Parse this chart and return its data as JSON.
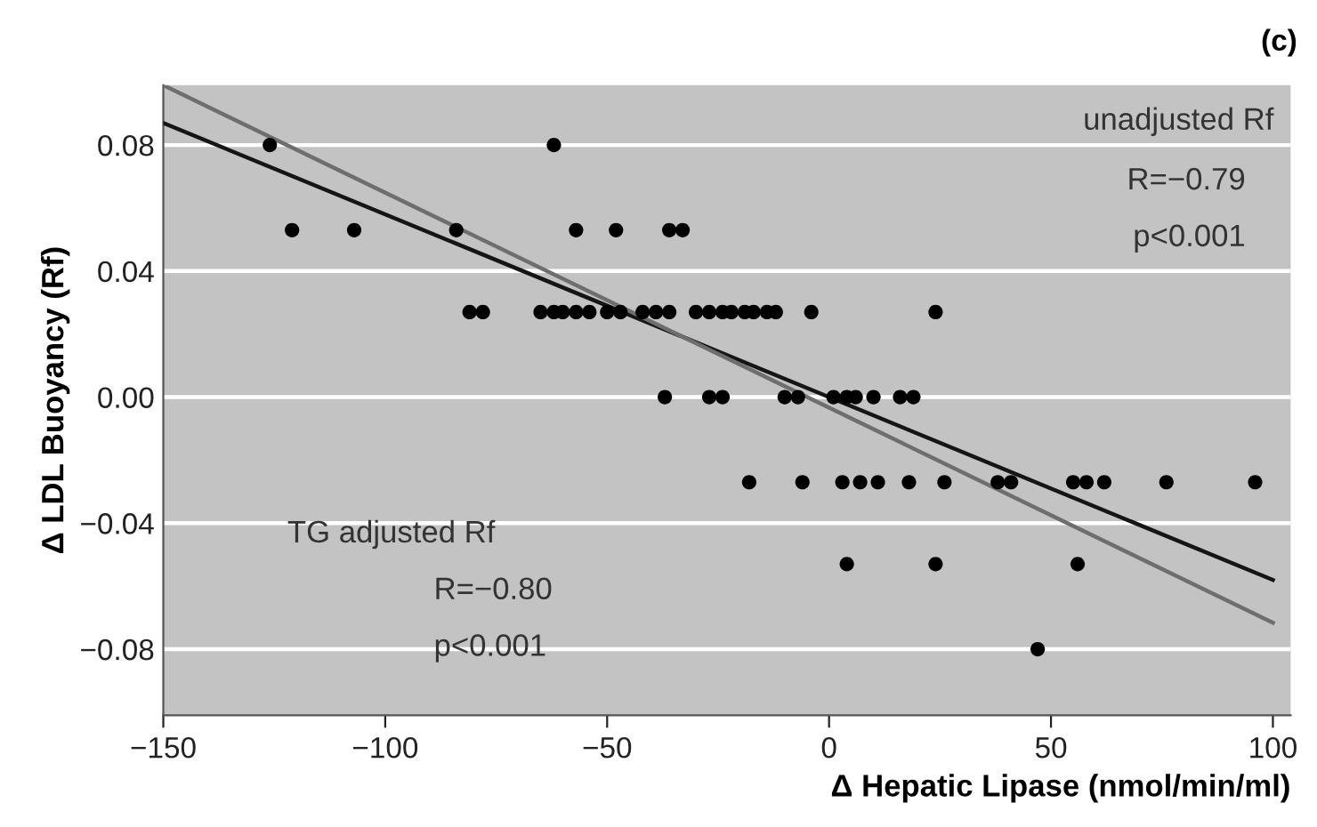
{
  "chart_data": {
    "type": "scatter",
    "xlabel": "Δ Hepatic Lipase (nmol/min/ml)",
    "ylabel": "Δ LDL Buoyancy (Rf)",
    "annotations": [
      "(c)",
      "unadjusted Rf",
      "R=−0.79",
      "p<0.001",
      "TG adjusted Rf",
      "R=−0.80",
      "p<0.001"
    ],
    "xlim": [
      -150,
      104
    ],
    "ylim": [
      -0.101,
      0.099
    ],
    "xticks": [
      {
        "value": -150,
        "label": "−150"
      },
      {
        "value": -100,
        "label": "−100"
      },
      {
        "value": -50,
        "label": "−50"
      },
      0,
      50,
      100
    ],
    "yticks": [
      {
        "value": -0.08,
        "label": "−0.08"
      },
      {
        "value": -0.04,
        "label": "−0.04"
      },
      {
        "value": 0,
        "label": "0.00"
      },
      {
        "value": 0.04,
        "label": "0.04"
      },
      {
        "value": 0.08,
        "label": "0.08"
      }
    ],
    "grid": "y",
    "legend": false,
    "series": [
      {
        "marker": "circle",
        "color": "#000000",
        "x": [
          -126,
          -62,
          -121,
          -107,
          -84,
          -57,
          -48,
          -36,
          -33,
          -81,
          -78,
          -65,
          -62,
          -60,
          -57,
          -54,
          -50,
          -47,
          -42,
          -39,
          -36,
          -30,
          -27,
          -24,
          -22,
          -19,
          -17,
          -14,
          -12,
          -4,
          24,
          -37,
          -27,
          -24,
          -10,
          -7,
          1,
          4,
          6,
          10,
          16,
          19,
          -18,
          -6,
          3,
          7,
          11,
          18,
          26,
          38,
          41,
          55,
          58,
          62,
          76,
          96,
          4,
          24,
          56,
          47
        ],
        "values": [
          0.08,
          0.08,
          0.053,
          0.053,
          0.053,
          0.053,
          0.053,
          0.053,
          0.053,
          0.027,
          0.027,
          0.027,
          0.027,
          0.027,
          0.027,
          0.027,
          0.027,
          0.027,
          0.027,
          0.027,
          0.027,
          0.027,
          0.027,
          0.027,
          0.027,
          0.027,
          0.027,
          0.027,
          0.027,
          0.027,
          0.027,
          0,
          0,
          0,
          0,
          0,
          0,
          0,
          0,
          0,
          0,
          0,
          -0.027,
          -0.027,
          -0.027,
          -0.027,
          -0.027,
          -0.027,
          -0.027,
          -0.027,
          -0.027,
          -0.027,
          -0.027,
          -0.027,
          -0.027,
          -0.027,
          -0.053,
          -0.053,
          -0.053,
          -0.08
        ]
      },
      {
        "type": "line",
        "color": "#151515",
        "x": [
          -150,
          100
        ],
        "values": [
          0.087,
          -0.058
        ]
      },
      {
        "type": "line",
        "color": "#6e6e6e",
        "x": [
          -150,
          100
        ],
        "values": [
          0.099,
          -0.0716
        ]
      }
    ]
  }
}
